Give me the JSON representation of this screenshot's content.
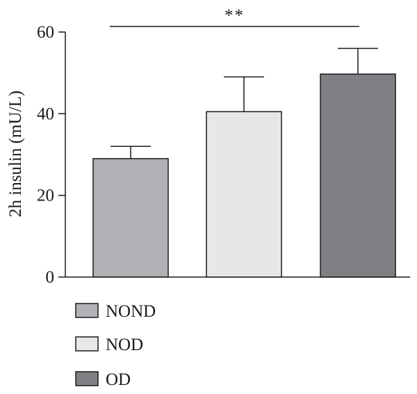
{
  "chart_data": {
    "type": "bar",
    "categories": [
      "NOND",
      "NOD",
      "OD"
    ],
    "values": [
      29,
      40.5,
      49.7
    ],
    "errors": [
      3,
      8.5,
      6.3
    ],
    "colors": [
      "#b1b2b6",
      "#e7e7e7",
      "#7f8084"
    ],
    "title": "",
    "xlabel": "",
    "ylabel": "2h insulin (mU/L)",
    "ylim": [
      0,
      60
    ],
    "yticks": [
      0,
      20,
      40,
      60
    ],
    "grid": false,
    "legend": {
      "placement": "bottom-left",
      "entries": [
        "NOND",
        "NOD",
        "OD"
      ]
    },
    "annotations": [
      {
        "text": "**",
        "from": "NOND",
        "to": "OD"
      }
    ]
  }
}
